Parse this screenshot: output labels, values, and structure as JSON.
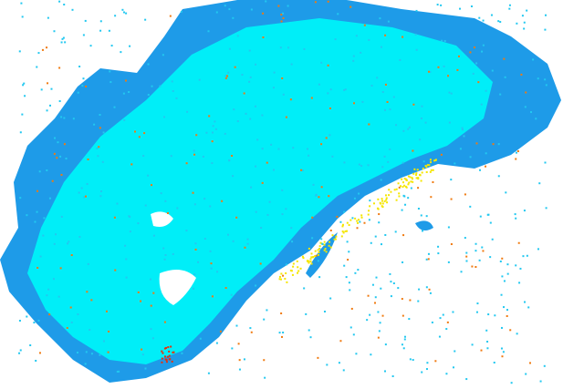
{
  "colors": {
    "background": "#ffffff",
    "weak_echo": "#1e9be8",
    "moderate_echo": "#00e5f5",
    "light_echo": "#22c8f0",
    "strong_echo": "#f5e600",
    "intense_echo": "#f07a10",
    "severe_echo": "#e8300a"
  }
}
